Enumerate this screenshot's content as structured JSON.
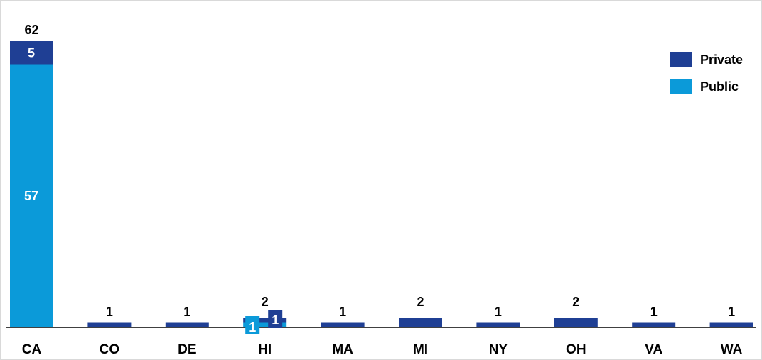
{
  "chart_data": {
    "type": "bar",
    "stacked": true,
    "categories": [
      "CA",
      "CO",
      "DE",
      "HI",
      "MA",
      "MI",
      "NY",
      "OH",
      "VA",
      "WA"
    ],
    "series": [
      {
        "name": "Private",
        "color": "#1f3f94",
        "values": [
          5,
          1,
          1,
          1,
          1,
          2,
          1,
          2,
          1,
          1
        ]
      },
      {
        "name": "Public",
        "color": "#0b9ad9",
        "values": [
          57,
          0,
          0,
          1,
          0,
          0,
          0,
          0,
          0,
          0
        ]
      }
    ],
    "totals": [
      62,
      1,
      1,
      2,
      1,
      2,
      1,
      2,
      1,
      1
    ],
    "ylim": [
      0,
      62
    ],
    "legend": "top-right",
    "grid": false
  }
}
